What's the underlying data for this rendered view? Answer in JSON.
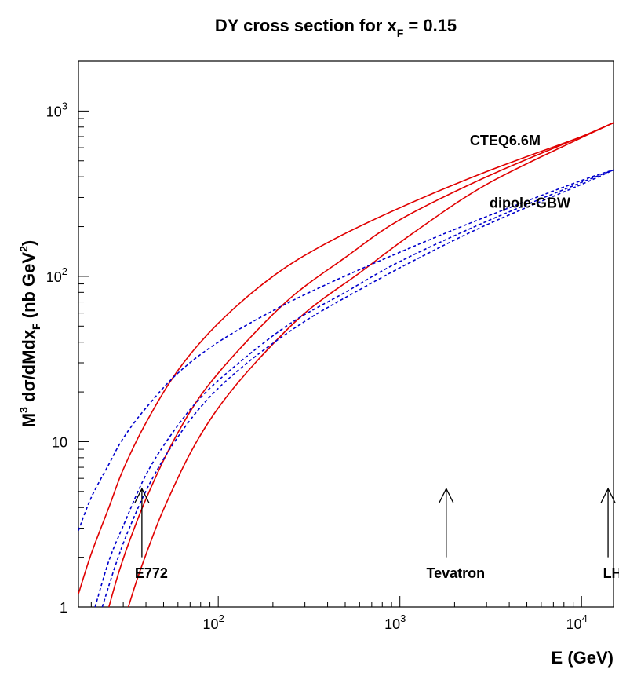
{
  "chart_data": {
    "type": "line",
    "title": "DY cross section for x_F = 0.15",
    "title_main": "DY cross section for x",
    "title_sub": "F",
    "title_tail": " = 0.15",
    "xlabel": "E (GeV)",
    "ylabel_parts": [
      "M",
      "3",
      " dσ/dMdx",
      "F",
      " (nb GeV",
      "2",
      ")"
    ],
    "x_scale": "log",
    "y_scale": "log",
    "xlim": [
      17,
      15000
    ],
    "ylim": [
      1,
      2000
    ],
    "x_ticks": [
      {
        "value": 100,
        "base": "10",
        "exp": "2"
      },
      {
        "value": 1000,
        "base": "10",
        "exp": "3"
      },
      {
        "value": 10000,
        "base": "10",
        "exp": "4"
      }
    ],
    "y_ticks": [
      {
        "value": 1,
        "label": "1",
        "exp": ""
      },
      {
        "value": 10,
        "label": "10",
        "exp": ""
      },
      {
        "value": 100,
        "label": "10",
        "exp": "2"
      },
      {
        "value": 1000,
        "label": "10",
        "exp": "3"
      }
    ],
    "series_groups": [
      {
        "name": "CTEQ6.6M",
        "color": "#e00000",
        "style": "solid"
      },
      {
        "name": "dipole-GBW",
        "color": "#0000cc",
        "style": "dashed"
      }
    ],
    "series": [
      {
        "group": 0,
        "x": [
          17,
          20,
          25,
          30,
          40,
          60,
          100,
          200,
          400,
          1000,
          3000,
          10000,
          15000
        ],
        "y": [
          1.2,
          2.1,
          4.0,
          6.8,
          13,
          27,
          52,
          100,
          160,
          260,
          430,
          700,
          850
        ]
      },
      {
        "group": 0,
        "x": [
          25,
          28,
          32,
          40,
          55,
          80,
          130,
          250,
          500,
          1000,
          3000,
          10000,
          15000
        ],
        "y": [
          1.0,
          1.55,
          2.4,
          4.5,
          9.5,
          19,
          36,
          74,
          130,
          220,
          400,
          700,
          850
        ]
      },
      {
        "group": 0,
        "x": [
          32,
          36,
          42,
          50,
          70,
          100,
          160,
          300,
          600,
          1200,
          3000,
          10000,
          15000
        ],
        "y": [
          1.0,
          1.5,
          2.4,
          3.9,
          8.5,
          16,
          30,
          60,
          105,
          185,
          360,
          690,
          850
        ]
      },
      {
        "group": 1,
        "x": [
          17,
          20,
          25,
          30,
          40,
          60,
          100,
          200,
          400,
          1000,
          3000,
          10000,
          15000
        ],
        "y": [
          2.9,
          4.6,
          7.3,
          10.5,
          16,
          26,
          40,
          62,
          90,
          140,
          230,
          380,
          440
        ]
      },
      {
        "group": 1,
        "x": [
          21,
          25,
          30,
          40,
          55,
          80,
          130,
          250,
          500,
          1000,
          3000,
          10000,
          15000
        ],
        "y": [
          1.0,
          1.9,
          3.1,
          6.3,
          11,
          18.5,
          30,
          52,
          80,
          123,
          215,
          370,
          440
        ]
      },
      {
        "group": 1,
        "x": [
          23,
          27,
          32,
          42,
          60,
          90,
          150,
          300,
          600,
          1200,
          3000,
          10000,
          15000
        ],
        "y": [
          1.0,
          1.75,
          2.9,
          5.6,
          10.7,
          18.7,
          31,
          53.5,
          83,
          125,
          205,
          360,
          440
        ]
      }
    ],
    "annotations": [
      {
        "text": "CTEQ6.6M",
        "x": 3800,
        "y": 620
      },
      {
        "text": "dipole-GBW",
        "x": 5200,
        "y": 260
      }
    ],
    "arrows": [
      {
        "label": "E772",
        "x": 38,
        "y_from": 2.0,
        "y_to": 5.2
      },
      {
        "label": "Tevatron",
        "x": 1800,
        "y_from": 2.0,
        "y_to": 5.2
      },
      {
        "label": "LHC",
        "x": 14000,
        "y_from": 2.0,
        "y_to": 5.2
      }
    ]
  }
}
